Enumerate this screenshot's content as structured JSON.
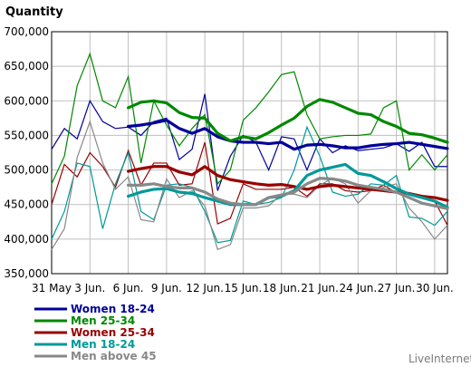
{
  "chart_data": {
    "type": "line",
    "ylabel": "Quantity",
    "ylim": [
      350000,
      700000
    ],
    "y_ticks": [
      350000,
      400000,
      450000,
      500000,
      550000,
      600000,
      650000,
      700000
    ],
    "y_tick_labels": [
      "350,000",
      "400,000",
      "450,000",
      "500,000",
      "550,000",
      "600,000",
      "650,000",
      "700,000"
    ],
    "x_tick_labels": [
      "31 May",
      "3 Jun.",
      "6 Jun.",
      "9 Jun.",
      "12 Jun.",
      "15 Jun.",
      "18 Jun.",
      "21 Jun.",
      "24 Jun.",
      "27 Jun.",
      "30 Jun."
    ],
    "x_tick_days": [
      0,
      3,
      6,
      9,
      12,
      15,
      18,
      21,
      24,
      27,
      30
    ],
    "x_days": [
      0,
      1,
      2,
      3,
      4,
      5,
      6,
      7,
      8,
      9,
      10,
      11,
      12,
      13,
      14,
      15,
      16,
      17,
      18,
      19,
      20,
      21,
      22,
      23,
      24,
      25,
      26,
      27,
      28,
      29,
      30,
      31
    ],
    "grid": true,
    "legend_position": "bottom-left",
    "series": [
      {
        "name": "Women 18-24",
        "color": "#000099",
        "values": [
          530000,
          560000,
          545000,
          600000,
          570000,
          560000,
          562000,
          550000,
          570000,
          575000,
          515000,
          530000,
          610000,
          470000,
          520000,
          550000,
          540000,
          500000,
          548000,
          545000,
          500000,
          545000,
          525000,
          535000,
          528000,
          530000,
          532000,
          538000,
          527000,
          540000,
          505000,
          505000
        ],
        "smooth": [
          null,
          null,
          null,
          null,
          null,
          null,
          563000,
          565000,
          568000,
          572000,
          560000,
          553000,
          560000,
          548000,
          542000,
          540000,
          540000,
          538000,
          540000,
          530000,
          536000,
          537000,
          535000,
          532000,
          532000,
          535000,
          537000,
          538000,
          540000,
          537000,
          534000,
          531000
        ]
      },
      {
        "name": "Men 25-34",
        "color": "#008800",
        "values": [
          480000,
          520000,
          622000,
          668000,
          600000,
          590000,
          635000,
          510000,
          600000,
          565000,
          535000,
          560000,
          580000,
          480000,
          500000,
          572000,
          590000,
          613000,
          638000,
          642000,
          580000,
          545000,
          548000,
          550000,
          550000,
          552000,
          590000,
          600000,
          500000,
          522000,
          500000,
          522000
        ],
        "smooth": [
          null,
          null,
          null,
          null,
          null,
          null,
          590000,
          598000,
          600000,
          597000,
          583000,
          576000,
          575000,
          553000,
          542000,
          548000,
          545000,
          554000,
          565000,
          575000,
          592000,
          602000,
          598000,
          590000,
          582000,
          580000,
          570000,
          563000,
          553000,
          551000,
          546000,
          540000
        ]
      },
      {
        "name": "Women 25-34",
        "color": "#990000",
        "values": [
          450000,
          508000,
          490000,
          525000,
          505000,
          475000,
          528000,
          478000,
          510000,
          510000,
          478000,
          480000,
          540000,
          422000,
          430000,
          480000,
          472000,
          472000,
          472000,
          475000,
          462000,
          480000,
          480000,
          470000,
          468000,
          470000,
          478000,
          467000,
          465000,
          462000,
          455000,
          420000
        ],
        "smooth": [
          null,
          null,
          null,
          null,
          null,
          null,
          498000,
          502000,
          505000,
          505000,
          497000,
          493000,
          505000,
          492000,
          486000,
          483000,
          480000,
          478000,
          479000,
          476000,
          472000,
          476000,
          478000,
          476000,
          474000,
          472000,
          470000,
          468000,
          466000,
          462000,
          460000,
          456000
        ]
      },
      {
        "name": "Men 18-24",
        "color": "#009999",
        "values": [
          400000,
          440000,
          510000,
          505000,
          415000,
          480000,
          525000,
          440000,
          428000,
          478000,
          480000,
          475000,
          440000,
          395000,
          398000,
          455000,
          450000,
          453000,
          460000,
          500000,
          562000,
          520000,
          468000,
          462000,
          465000,
          480000,
          478000,
          492000,
          432000,
          430000,
          420000,
          440000
        ],
        "smooth": [
          null,
          null,
          null,
          null,
          null,
          null,
          462000,
          468000,
          472000,
          473000,
          468000,
          466000,
          460000,
          455000,
          450000,
          450000,
          450000,
          460000,
          462000,
          470000,
          492000,
          500000,
          504000,
          508000,
          495000,
          492000,
          483000,
          473000,
          465000,
          460000,
          455000,
          446000
        ]
      },
      {
        "name": "Men above 45",
        "color": "#888888",
        "values": [
          385000,
          415000,
          518000,
          570000,
          510000,
          472000,
          490000,
          428000,
          425000,
          487000,
          460000,
          470000,
          448000,
          385000,
          392000,
          445000,
          445000,
          448000,
          465000,
          465000,
          460000,
          478000,
          488000,
          480000,
          452000,
          470000,
          475000,
          480000,
          445000,
          425000,
          400000,
          420000
        ],
        "smooth": [
          null,
          null,
          null,
          null,
          null,
          null,
          478000,
          478000,
          480000,
          476000,
          474000,
          474000,
          468000,
          458000,
          452000,
          450000,
          450000,
          460000,
          464000,
          468000,
          480000,
          488000,
          487000,
          484000,
          478000,
          475000,
          472000,
          468000,
          460000,
          452000,
          448000,
          444000
        ]
      }
    ]
  },
  "branding": "LiveInternet"
}
